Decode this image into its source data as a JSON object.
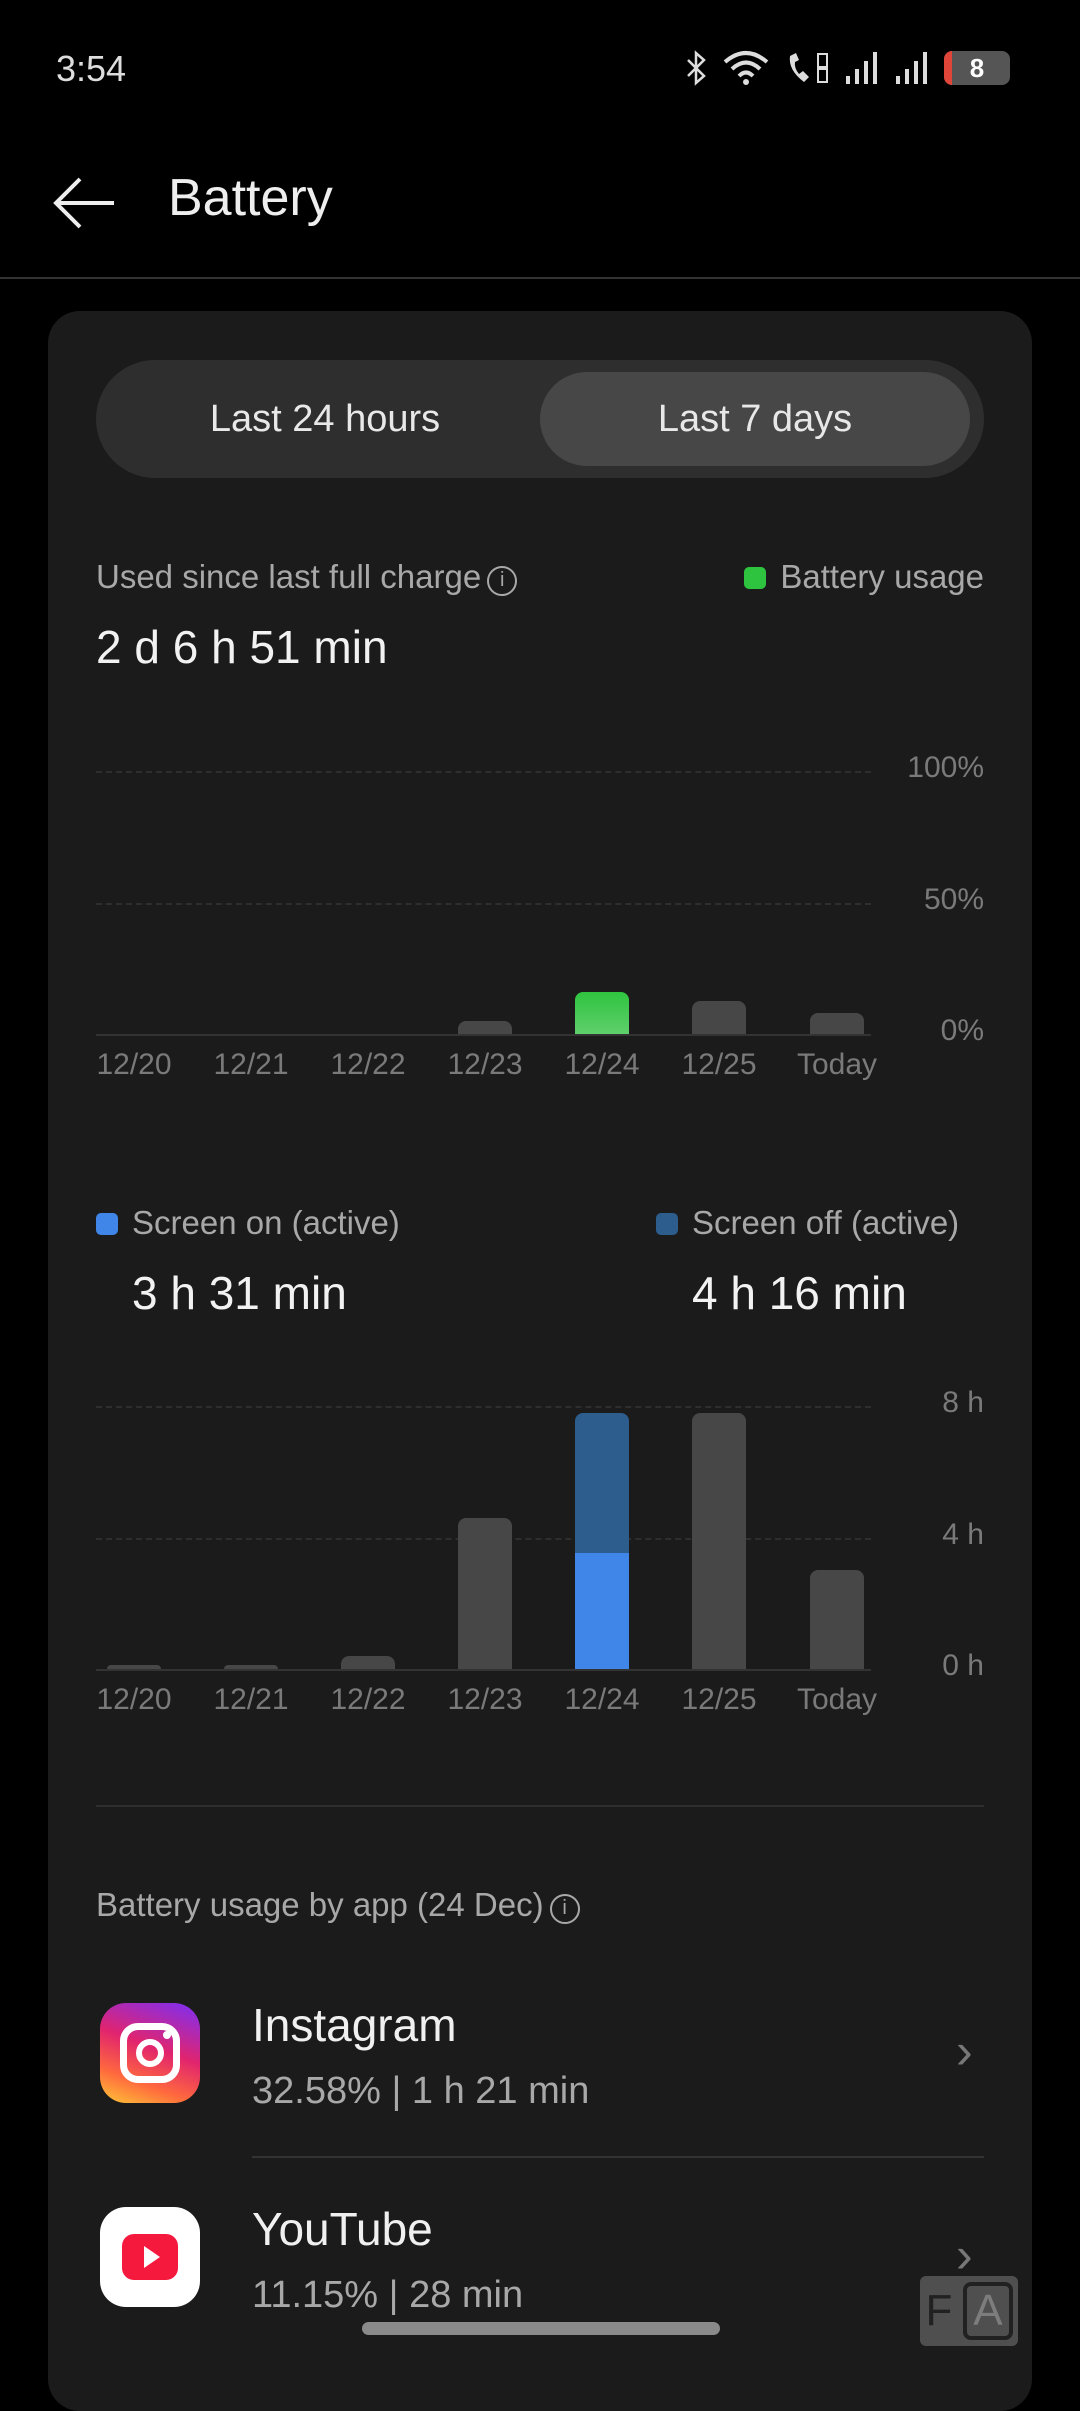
{
  "status_bar": {
    "time": "3:54",
    "battery_level": "8",
    "icons": [
      "bluetooth-icon",
      "wifi-icon",
      "wifi-calling-icon",
      "signal-sim1-icon",
      "signal-sim2-icon",
      "battery-icon"
    ]
  },
  "header": {
    "title": "Battery",
    "back_icon": "arrow-left-icon"
  },
  "tabs": [
    {
      "label": "Last 24 hours",
      "selected": false
    },
    {
      "label": "Last 7 days",
      "selected": true
    }
  ],
  "summary": {
    "label": "Used since last full charge",
    "value": "2 d 6 h 51 min",
    "legend": "Battery usage",
    "legend_color": "#2fc43f"
  },
  "screen": {
    "on_label": "Screen on (active)",
    "on_value": "3 h 31 min",
    "on_color": "#3f86e8",
    "off_label": "Screen off (active)",
    "off_value": "4 h 16 min",
    "off_color": "#2d5d8c"
  },
  "chart_data": [
    {
      "type": "bar",
      "categories": [
        "12/20",
        "12/21",
        "12/22",
        "12/23",
        "12/24",
        "12/25",
        "Today"
      ],
      "values": [
        0,
        0,
        0,
        5,
        16,
        12.5,
        8
      ],
      "highlight": "12/24",
      "yticks": [
        "100%",
        "50%",
        "0%"
      ],
      "ylim": [
        0,
        100
      ],
      "grid": true,
      "bar_color": "#474747",
      "highlight_color": "#2fc43f"
    },
    {
      "type": "bar",
      "stacked": true,
      "categories": [
        "12/20",
        "12/21",
        "12/22",
        "12/23",
        "12/24",
        "12/25",
        "Today"
      ],
      "values": [
        0.1,
        0.1,
        0.4,
        4.6,
        7.8,
        7.8,
        3.0
      ],
      "highlight": "12/24",
      "series": [
        {
          "name": "Screen on (active)",
          "values": [
            null,
            null,
            null,
            null,
            3.52,
            null,
            null
          ]
        },
        {
          "name": "Screen off (active)",
          "values": [
            null,
            null,
            null,
            null,
            4.27,
            null,
            null
          ]
        }
      ],
      "yticks": [
        "8 h",
        "4 h",
        "0 h"
      ],
      "ylim": [
        0,
        8
      ],
      "grid": true
    }
  ],
  "apps_section": {
    "title": "Battery usage by app (24 Dec)"
  },
  "apps": [
    {
      "name": "Instagram",
      "percent": "32.58%",
      "separator": "|",
      "time": "1 h 21 min",
      "icon": "instagram-icon"
    },
    {
      "name": "YouTube",
      "percent": "11.15%",
      "separator": "|",
      "time": "28 min",
      "icon": "youtube-icon"
    }
  ],
  "overlay": {
    "f": "F",
    "a": "A"
  }
}
